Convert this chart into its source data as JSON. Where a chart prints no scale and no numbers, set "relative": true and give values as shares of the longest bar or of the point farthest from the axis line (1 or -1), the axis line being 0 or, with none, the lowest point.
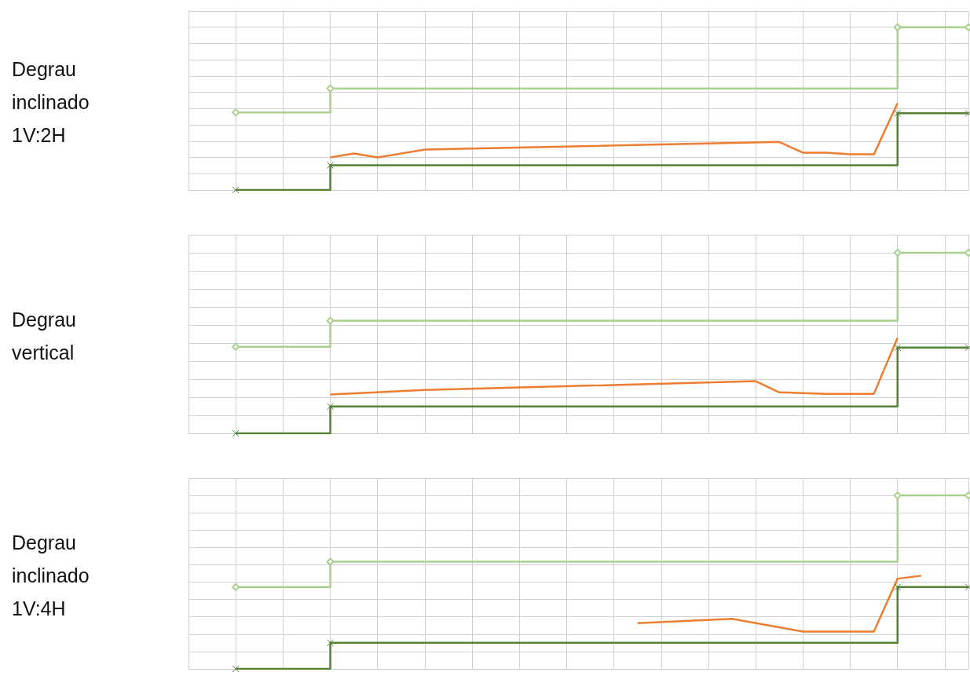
{
  "chart_data": [
    {
      "type": "line",
      "title": "Degrau inclinado 1V:2H",
      "relative": true,
      "grid": true,
      "tick_labels": false,
      "categories": [
        null,
        null,
        null,
        null,
        null,
        null,
        null,
        null,
        null,
        null,
        null,
        null,
        null,
        null,
        null,
        null,
        null,
        null,
        null,
        null,
        null,
        null,
        null,
        null,
        null,
        null,
        null,
        null,
        null,
        null,
        null,
        null,
        null,
        null
      ],
      "series": [
        {
          "type": "step",
          "color": "#a9d18e",
          "marker": "diamond",
          "values": [
            null,
            null,
            0.476,
            null,
            null,
            null,
            0.624,
            null,
            null,
            null,
            null,
            null,
            null,
            null,
            null,
            null,
            null,
            null,
            null,
            null,
            null,
            null,
            null,
            null,
            null,
            null,
            null,
            null,
            null,
            null,
            1,
            null,
            null,
            1
          ]
        },
        {
          "type": "step",
          "color": "#548235",
          "marker": "cross",
          "values": [
            null,
            null,
            0,
            null,
            null,
            null,
            0.152,
            null,
            null,
            null,
            null,
            null,
            null,
            null,
            null,
            null,
            null,
            null,
            null,
            null,
            null,
            null,
            null,
            null,
            null,
            null,
            null,
            null,
            null,
            null,
            0.471,
            null,
            null,
            0.471
          ]
        },
        {
          "color": "#ed7d31",
          "marker": "none",
          "values": [
            null,
            null,
            null,
            null,
            null,
            null,
            0.2,
            0.224,
            0.2,
            null,
            0.248,
            null,
            null,
            null,
            null,
            null,
            null,
            null,
            null,
            null,
            null,
            null,
            null,
            null,
            null,
            0.295,
            0.229,
            0.229,
            0.219,
            0.219,
            0.533,
            null,
            null,
            null
          ]
        }
      ]
    },
    {
      "type": "line",
      "title": "Degrau vertical",
      "relative": true,
      "grid": true,
      "tick_labels": false,
      "categories": [
        null,
        null,
        null,
        null,
        null,
        null,
        null,
        null,
        null,
        null,
        null,
        null,
        null,
        null,
        null,
        null,
        null,
        null,
        null,
        null,
        null,
        null,
        null,
        null,
        null,
        null,
        null,
        null,
        null,
        null,
        null,
        null,
        null,
        null
      ],
      "series": [
        {
          "type": "step",
          "color": "#a9d18e",
          "marker": "diamond",
          "values": [
            null,
            null,
            0.479,
            null,
            null,
            null,
            0.624,
            null,
            null,
            null,
            null,
            null,
            null,
            null,
            null,
            null,
            null,
            null,
            null,
            null,
            null,
            null,
            null,
            null,
            null,
            null,
            null,
            null,
            null,
            null,
            1,
            null,
            null,
            1
          ]
        },
        {
          "type": "step",
          "color": "#548235",
          "marker": "cross",
          "values": [
            null,
            null,
            0,
            null,
            null,
            null,
            0.149,
            null,
            null,
            null,
            null,
            null,
            null,
            null,
            null,
            null,
            null,
            null,
            null,
            null,
            null,
            null,
            null,
            null,
            null,
            null,
            null,
            null,
            null,
            null,
            0.475,
            null,
            null,
            0.475
          ]
        },
        {
          "color": "#ed7d31",
          "marker": "none",
          "values": [
            null,
            null,
            null,
            null,
            null,
            null,
            0.215,
            null,
            null,
            null,
            0.24,
            null,
            null,
            null,
            null,
            null,
            null,
            null,
            null,
            null,
            null,
            null,
            null,
            null,
            0.289,
            0.227,
            null,
            0.219,
            null,
            0.219,
            0.529,
            null,
            null,
            null
          ]
        }
      ]
    },
    {
      "type": "line",
      "title": "Degrau inclinado 1V:4H",
      "relative": true,
      "grid": true,
      "tick_labels": false,
      "categories": [
        null,
        null,
        null,
        null,
        null,
        null,
        null,
        null,
        null,
        null,
        null,
        null,
        null,
        null,
        null,
        null,
        null,
        null,
        null,
        null,
        null,
        null,
        null,
        null,
        null,
        null,
        null,
        null,
        null,
        null,
        null,
        null,
        null,
        null
      ],
      "series": [
        {
          "type": "step",
          "color": "#a9d18e",
          "marker": "diamond",
          "values": [
            null,
            null,
            0.472,
            null,
            null,
            null,
            0.618,
            null,
            null,
            null,
            null,
            null,
            null,
            null,
            null,
            null,
            null,
            null,
            null,
            null,
            null,
            null,
            null,
            null,
            null,
            null,
            null,
            null,
            null,
            null,
            1,
            null,
            null,
            1
          ]
        },
        {
          "type": "step",
          "color": "#548235",
          "marker": "cross",
          "values": [
            null,
            null,
            0,
            null,
            null,
            null,
            0.15,
            null,
            null,
            null,
            null,
            null,
            null,
            null,
            null,
            null,
            null,
            null,
            null,
            null,
            null,
            null,
            null,
            null,
            null,
            null,
            null,
            null,
            null,
            null,
            0.472,
            null,
            null,
            0.472
          ]
        },
        {
          "color": "#ed7d31",
          "marker": "none",
          "values": [
            null,
            null,
            null,
            null,
            null,
            null,
            null,
            null,
            null,
            null,
            null,
            null,
            null,
            null,
            null,
            null,
            null,
            null,
            null,
            0.264,
            null,
            null,
            null,
            0.289,
            null,
            null,
            0.215,
            null,
            null,
            0.215,
            0.52,
            0.537,
            null,
            null
          ]
        }
      ]
    }
  ]
}
